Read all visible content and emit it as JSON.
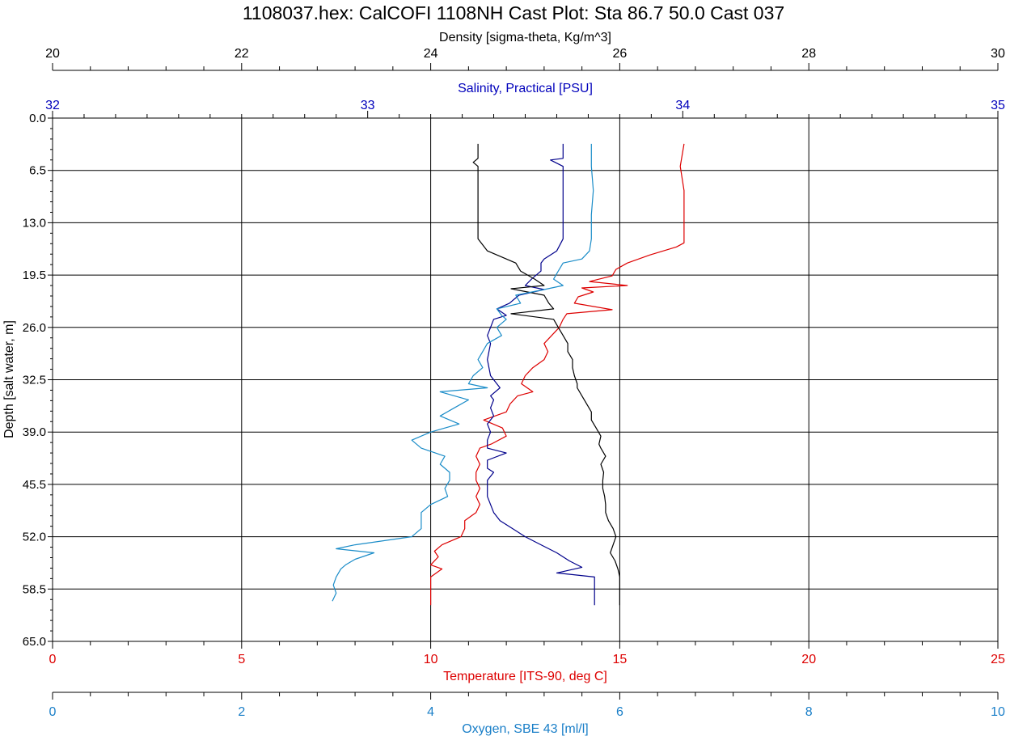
{
  "chart_data": {
    "type": "line",
    "title": "1108037.hex: CalCOFI 1108NH Cast Plot: Sta 86.7 50.0  Cast 037",
    "grid": true,
    "y_axis": {
      "label": "Depth [salt water, m]",
      "range": [
        0,
        65
      ],
      "ticks": [
        0.0,
        6.5,
        13.0,
        19.5,
        26.0,
        32.5,
        39.0,
        45.5,
        52.0,
        58.5,
        65.0
      ],
      "tick_labels": [
        "0.0",
        "6.5",
        "13.0",
        "19.5",
        "26.0",
        "32.5",
        "39.0",
        "45.5",
        "52.0",
        "58.5",
        "65.0"
      ],
      "inverted": true
    },
    "x_axes": [
      {
        "id": "density",
        "label": "Density [sigma-theta, Kg/m^3]",
        "position": "top-outer",
        "range": [
          20,
          30
        ],
        "ticks": [
          20,
          22,
          24,
          26,
          28,
          30
        ],
        "tick_labels": [
          "20",
          "22",
          "24",
          "26",
          "28",
          "30"
        ],
        "color": "#000000"
      },
      {
        "id": "salinity",
        "label": "Salinity, Practical [PSU]",
        "position": "top-inner",
        "range": [
          32,
          35
        ],
        "ticks": [
          32,
          33,
          34,
          35
        ],
        "tick_labels": [
          "32",
          "33",
          "34",
          "35"
        ],
        "color": "#0000bb"
      },
      {
        "id": "temperature",
        "label": "Temperature [ITS-90, deg C]",
        "position": "bottom-inner",
        "range": [
          0,
          25
        ],
        "ticks": [
          0,
          5,
          10,
          15,
          20,
          25
        ],
        "tick_labels": [
          "0",
          "5",
          "10",
          "15",
          "20",
          "25"
        ],
        "color": "#dd0000"
      },
      {
        "id": "oxygen",
        "label": "Oxygen, SBE 43 [ml/l]",
        "position": "bottom-outer",
        "range": [
          0,
          10
        ],
        "ticks": [
          0,
          2,
          4,
          6,
          8,
          10
        ],
        "tick_labels": [
          "0",
          "2",
          "4",
          "6",
          "8",
          "10"
        ],
        "color": "#1a7fc8"
      }
    ],
    "series": [
      {
        "axis": "temperature",
        "color": "#dd0000",
        "depth": [
          3.2,
          6,
          9,
          12,
          15.5,
          16,
          17,
          18,
          18.8,
          19.6,
          20.3,
          20.8,
          21.1,
          21.6,
          22.2,
          23,
          23.8,
          24.3,
          25,
          26,
          27,
          28,
          29,
          30,
          31,
          32,
          33,
          34,
          34.5,
          35.5,
          36.5,
          37.5,
          38.5,
          39.5,
          40.5,
          41,
          42,
          43,
          44,
          45,
          46,
          47,
          48,
          49,
          50,
          51,
          52,
          53,
          53.8,
          54.5,
          55.5,
          56,
          57,
          58,
          59,
          60,
          60.5
        ],
        "values": [
          16.7,
          16.6,
          16.7,
          16.7,
          16.7,
          16.5,
          15.8,
          15.2,
          14.9,
          14.8,
          14.2,
          15.2,
          14.0,
          14.3,
          13.9,
          13.8,
          14.8,
          13.6,
          13.5,
          13.4,
          13.2,
          13.0,
          13.1,
          13.0,
          12.7,
          12.5,
          12.4,
          12.7,
          12.3,
          12.1,
          12.0,
          11.4,
          11.9,
          12.0,
          11.6,
          11.3,
          11.2,
          11.3,
          11.2,
          11.2,
          11.3,
          11.2,
          11.3,
          11.2,
          10.9,
          10.9,
          10.8,
          10.3,
          10.1,
          10.2,
          10.0,
          10.3,
          10.0,
          10.0,
          10.0,
          10.0,
          10.0
        ]
      },
      {
        "axis": "salinity",
        "color": "#00008b",
        "depth": [
          3.2,
          5,
          5.2,
          6,
          9,
          12,
          15,
          16.5,
          17.5,
          18,
          19,
          20,
          20.8,
          21.3,
          22,
          23,
          23.7,
          24.5,
          25,
          26,
          27,
          28,
          30,
          32,
          33.5,
          34.5,
          35,
          36,
          37,
          38,
          39,
          40,
          41,
          41.6,
          42.5,
          43.5,
          44,
          45,
          46,
          47,
          48,
          49,
          50,
          51,
          52,
          53,
          54,
          55,
          55.8,
          56.5,
          57,
          58,
          59,
          60,
          60.5
        ],
        "values": [
          33.62,
          33.62,
          33.58,
          33.62,
          33.62,
          33.62,
          33.62,
          33.6,
          33.56,
          33.55,
          33.55,
          33.52,
          33.5,
          33.56,
          33.48,
          33.45,
          33.41,
          33.44,
          33.4,
          33.39,
          33.38,
          33.39,
          33.38,
          33.39,
          33.42,
          33.39,
          33.4,
          33.39,
          33.4,
          33.38,
          33.39,
          33.38,
          33.38,
          33.44,
          33.38,
          33.38,
          33.4,
          33.38,
          33.38,
          33.38,
          33.39,
          33.4,
          33.42,
          33.46,
          33.5,
          33.55,
          33.6,
          33.64,
          33.68,
          33.6,
          33.72,
          33.72,
          33.72,
          33.72,
          33.72
        ]
      },
      {
        "axis": "density",
        "color": "#000000",
        "depth": [
          3.2,
          5,
          5.5,
          6,
          10,
          15,
          16.5,
          17.5,
          18,
          19,
          20,
          20.8,
          21.2,
          22,
          23,
          23.7,
          24.3,
          25,
          26,
          27,
          28,
          29,
          30,
          31,
          32,
          33,
          33.5,
          34.5,
          35.5,
          36.5,
          37.5,
          38.5,
          39.5,
          40.5,
          41,
          42,
          43,
          44,
          45,
          46,
          47,
          48,
          49,
          50,
          51,
          52,
          53,
          54,
          55,
          56,
          57,
          58,
          59,
          60,
          60.5
        ],
        "values": [
          24.5,
          24.5,
          24.45,
          24.5,
          24.5,
          24.5,
          24.6,
          24.8,
          24.9,
          24.95,
          25.1,
          25.2,
          24.85,
          25.2,
          25.25,
          25.3,
          24.85,
          25.3,
          25.35,
          25.4,
          25.45,
          25.45,
          25.5,
          25.5,
          25.52,
          25.55,
          25.55,
          25.6,
          25.65,
          25.7,
          25.7,
          25.75,
          25.8,
          25.78,
          25.8,
          25.85,
          25.8,
          25.83,
          25.82,
          25.82,
          25.84,
          25.85,
          25.85,
          25.88,
          25.93,
          25.96,
          25.93,
          25.9,
          25.95,
          25.98,
          26.0,
          26.0,
          26.0,
          26.0,
          26.0
        ]
      },
      {
        "axis": "oxygen",
        "color": "#1a8cc8",
        "depth": [
          3.2,
          6,
          9,
          12,
          15,
          16.5,
          17.5,
          18,
          19,
          20,
          20.8,
          21.3,
          22,
          23,
          23.7,
          24.5,
          25,
          26,
          27,
          28,
          29,
          30,
          31,
          32,
          33,
          33.5,
          34,
          35,
          36,
          37,
          38,
          39,
          40,
          41,
          42,
          43,
          44,
          45,
          46,
          47,
          48,
          49,
          50,
          51,
          52,
          53,
          53.5,
          54,
          54.8,
          55.5,
          56,
          57,
          58,
          59,
          60
        ],
        "values": [
          5.7,
          5.7,
          5.72,
          5.7,
          5.7,
          5.68,
          5.6,
          5.4,
          5.35,
          5.3,
          5.4,
          5.2,
          4.9,
          4.95,
          4.7,
          4.75,
          4.8,
          4.7,
          4.75,
          4.6,
          4.55,
          4.5,
          4.55,
          4.45,
          4.4,
          4.6,
          4.1,
          4.4,
          4.25,
          4.1,
          4.3,
          4.0,
          3.8,
          3.9,
          4.15,
          4.1,
          4.2,
          4.2,
          4.15,
          4.18,
          4.0,
          3.9,
          3.9,
          3.9,
          3.8,
          3.2,
          3.0,
          3.4,
          3.2,
          3.1,
          3.05,
          3.0,
          2.97,
          3.0,
          2.96
        ]
      }
    ]
  }
}
